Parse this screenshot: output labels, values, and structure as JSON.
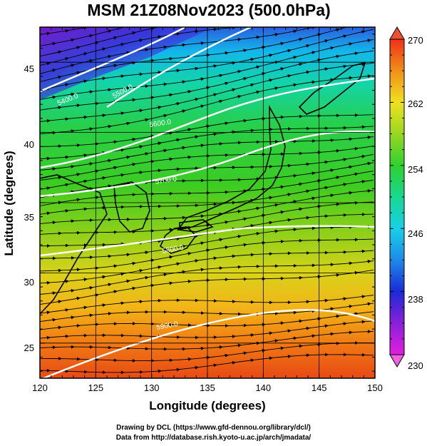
{
  "title": "MSM 21Z08Nov2023 (500.0hPa)",
  "xlabel": "Longitude (degrees)",
  "ylabel": "Latitude  (degrees)",
  "x_ticks": [
    "120",
    "125",
    "130",
    "135",
    "140",
    "145",
    "150"
  ],
  "y_ticks": [
    "25",
    "30",
    "35",
    "40",
    "45"
  ],
  "colorbar": {
    "ticks": [
      "270",
      "262",
      "254",
      "246",
      "238",
      "230"
    ],
    "min": 230,
    "max": 270
  },
  "contour_labels": [
    "5400.0",
    "5500.0",
    "5600.0",
    "5700.0",
    "5800.0",
    "5900.0"
  ],
  "credits": {
    "line1": "Drawing by DCL (https://www.gfd-dennou.org/library/dcl/)",
    "line2": "Data from http://database.rish.kyoto-u.ac.jp/arch/jmadata/"
  },
  "map": {
    "lon_range": [
      120,
      150
    ],
    "lat_range": [
      22.5,
      47.5
    ],
    "gridlines": true
  }
}
